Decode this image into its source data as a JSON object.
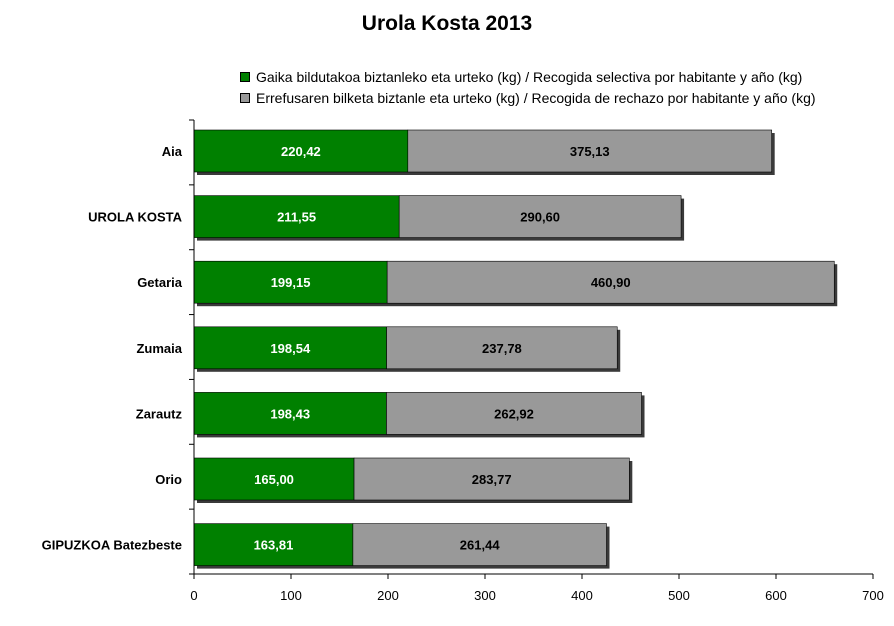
{
  "chart_data": {
    "type": "bar",
    "orientation": "horizontal",
    "stacked": true,
    "title": "Urola Kosta 2013",
    "categories": [
      "Aia",
      "UROLA KOSTA",
      "Getaria",
      "Zumaia",
      "Zarautz",
      "Orio",
      "GIPUZKOA Batezbeste"
    ],
    "series": [
      {
        "name": "Gaika bildutakoa biztanleko eta urteko (kg) / Recogida selectiva por habitante y año (kg)",
        "color": "#008000",
        "label_color": "#ffffff",
        "values": [
          220.42,
          211.55,
          199.15,
          198.54,
          198.43,
          165.0,
          163.81
        ],
        "labels": [
          "220,42",
          "211,55",
          "199,15",
          "198,54",
          "198,43",
          "165,00",
          "163,81"
        ]
      },
      {
        "name": "Errefusaren bilketa biztanle eta urteko (kg) / Recogida de rechazo por habitante y año (kg)",
        "color": "#999999",
        "label_color": "#000000",
        "values": [
          375.13,
          290.6,
          460.9,
          237.78,
          262.92,
          283.77,
          261.44
        ],
        "labels": [
          "375,13",
          "290,60",
          "460,90",
          "237,78",
          "262,92",
          "283,77",
          "261,44"
        ]
      }
    ],
    "xlim": [
      0,
      700
    ],
    "xticks": [
      0,
      100,
      200,
      300,
      400,
      500,
      600,
      700
    ],
    "grid": false,
    "legend_position": "top-right"
  }
}
